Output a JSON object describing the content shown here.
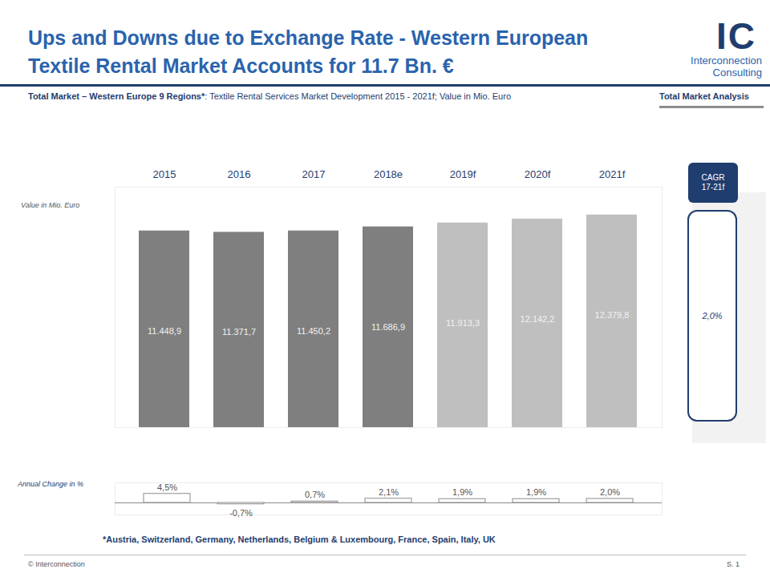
{
  "page": {
    "logo": {
      "mark": "IC",
      "name": "Interconnection",
      "suffix": "Consulting"
    },
    "section": "Total Market Analysis",
    "footnote": "*Austria, Switzerland, Germany, Netherlands, Belgium & Luxembourg, France, Spain, Italy, UK",
    "footer_left": "© Interconnection",
    "footer_right": "S. 1"
  },
  "chart_data": [
    {
      "type": "bar",
      "title": "Ups and Downs due to Exchange Rate - Western European Textile Rental Market Accounts for 11.7 Bn. €",
      "subtitle": "Total Market – Western Europe 9 Regions*: Textile Rental Services Market Development 2015 - 2021f; Value in Mio. Euro",
      "ylabel": "Value in Mio. Euro",
      "categories": [
        "2015",
        "2016",
        "2017",
        "2018e",
        "2019f",
        "2020f",
        "2021f"
      ],
      "values": [
        11448.9,
        11371.7,
        11450.2,
        11686.9,
        11913.3,
        12142.2,
        12379.8
      ],
      "value_labels": [
        "11.448,9",
        "11.371,7",
        "11.450,2",
        "11.686,9",
        "11.913,3",
        "12.142,2",
        "12.379,8"
      ],
      "colors": [
        "#7f7f7f",
        "#7f7f7f",
        "#7f7f7f",
        "#7f7f7f",
        "#bfbfbf",
        "#bfbfbf",
        "#bfbfbf"
      ],
      "ylim": [
        0,
        14000
      ],
      "yticks": [],
      "tick_labels": "x",
      "data_labels": true,
      "grid": false,
      "annotations": [
        "CAGR 17-21f",
        "2,0%"
      ]
    },
    {
      "type": "bar",
      "title": "Annual Change in %",
      "categories": [
        "2015",
        "2016",
        "2017",
        "2018e",
        "2019f",
        "2020f",
        "2021f"
      ],
      "values": [
        4.5,
        -0.7,
        0.7,
        2.1,
        1.9,
        1.9,
        2.0
      ],
      "value_labels": [
        "4,5%",
        "-0,7%",
        "0,7%",
        "2,1%",
        "1,9%",
        "1,9%",
        "2,0%"
      ],
      "color": "#ffffff",
      "ylim": [
        -6,
        10
      ],
      "yticks": [],
      "tick_labels": false,
      "data_labels": true,
      "grid": false
    }
  ]
}
